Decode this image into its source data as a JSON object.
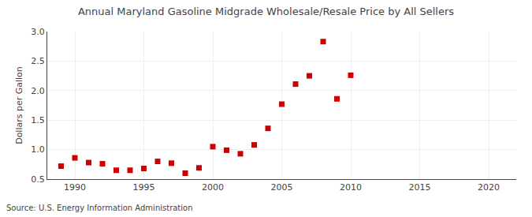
{
  "chart_data": {
    "type": "scatter",
    "title": "Annual Maryland Gasoline Midgrade Wholesale/Resale Price by All Sellers",
    "ylabel": "Dollars per Gallon",
    "annotations": [
      "Source: U.S. Energy Information Administration"
    ],
    "x": [
      1989,
      1990,
      1991,
      1992,
      1993,
      1994,
      1995,
      1996,
      1997,
      1998,
      1999,
      2000,
      2001,
      2002,
      2003,
      2004,
      2005,
      2006,
      2007,
      2008,
      2009,
      2010
    ],
    "values": [
      0.72,
      0.86,
      0.78,
      0.76,
      0.65,
      0.65,
      0.68,
      0.8,
      0.77,
      0.6,
      0.69,
      1.05,
      0.99,
      0.93,
      1.08,
      1.36,
      1.77,
      2.11,
      2.25,
      2.83,
      1.86,
      2.26
    ],
    "color": "#cc0000",
    "marker": "square",
    "xlim": [
      1988,
      2022
    ],
    "ylim": [
      0.5,
      3.0
    ],
    "xticks": [
      1990,
      1995,
      2000,
      2005,
      2010,
      2015,
      2020
    ],
    "yticks": [
      0.5,
      {
        "value": 1.0,
        "label": "1.0"
      },
      1.5,
      {
        "value": 2.0,
        "label": "2.0"
      },
      2.5,
      {
        "value": 3.0,
        "label": "3.0"
      }
    ],
    "grid": true
  }
}
